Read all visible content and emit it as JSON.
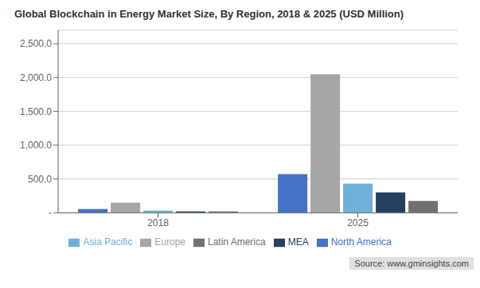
{
  "chart_data": {
    "type": "bar",
    "title": "Global Blockchain in Energy Market Size, By Region, 2018 & 2025 (USD Million)",
    "categories": [
      "2018",
      "2025"
    ],
    "series": [
      {
        "name": "North America",
        "color": "#4472c4",
        "values": [
          55,
          570
        ]
      },
      {
        "name": "Europe",
        "color": "#a6a6a6",
        "values": [
          150,
          2050
        ]
      },
      {
        "name": "Asia Pacific",
        "color": "#70b0d8",
        "values": [
          30,
          430
        ]
      },
      {
        "name": "MEA",
        "color": "#243f60",
        "values": [
          20,
          300
        ]
      },
      {
        "name": "Latin America",
        "color": "#717171",
        "values": [
          20,
          175
        ]
      }
    ],
    "ylim": [
      0,
      2700
    ],
    "yticks": [
      {
        "value": 0,
        "label": "-"
      },
      {
        "value": 500,
        "label": "500.0"
      },
      {
        "value": 1000,
        "label": "1,000.0"
      },
      {
        "value": 1500,
        "label": "1,500.0"
      },
      {
        "value": 2000,
        "label": "2,000.0"
      },
      {
        "value": 2500,
        "label": "2,500.0"
      }
    ],
    "grid": true,
    "legend": "bottom",
    "annotations": [
      "Source: www.gminsights.com"
    ]
  }
}
